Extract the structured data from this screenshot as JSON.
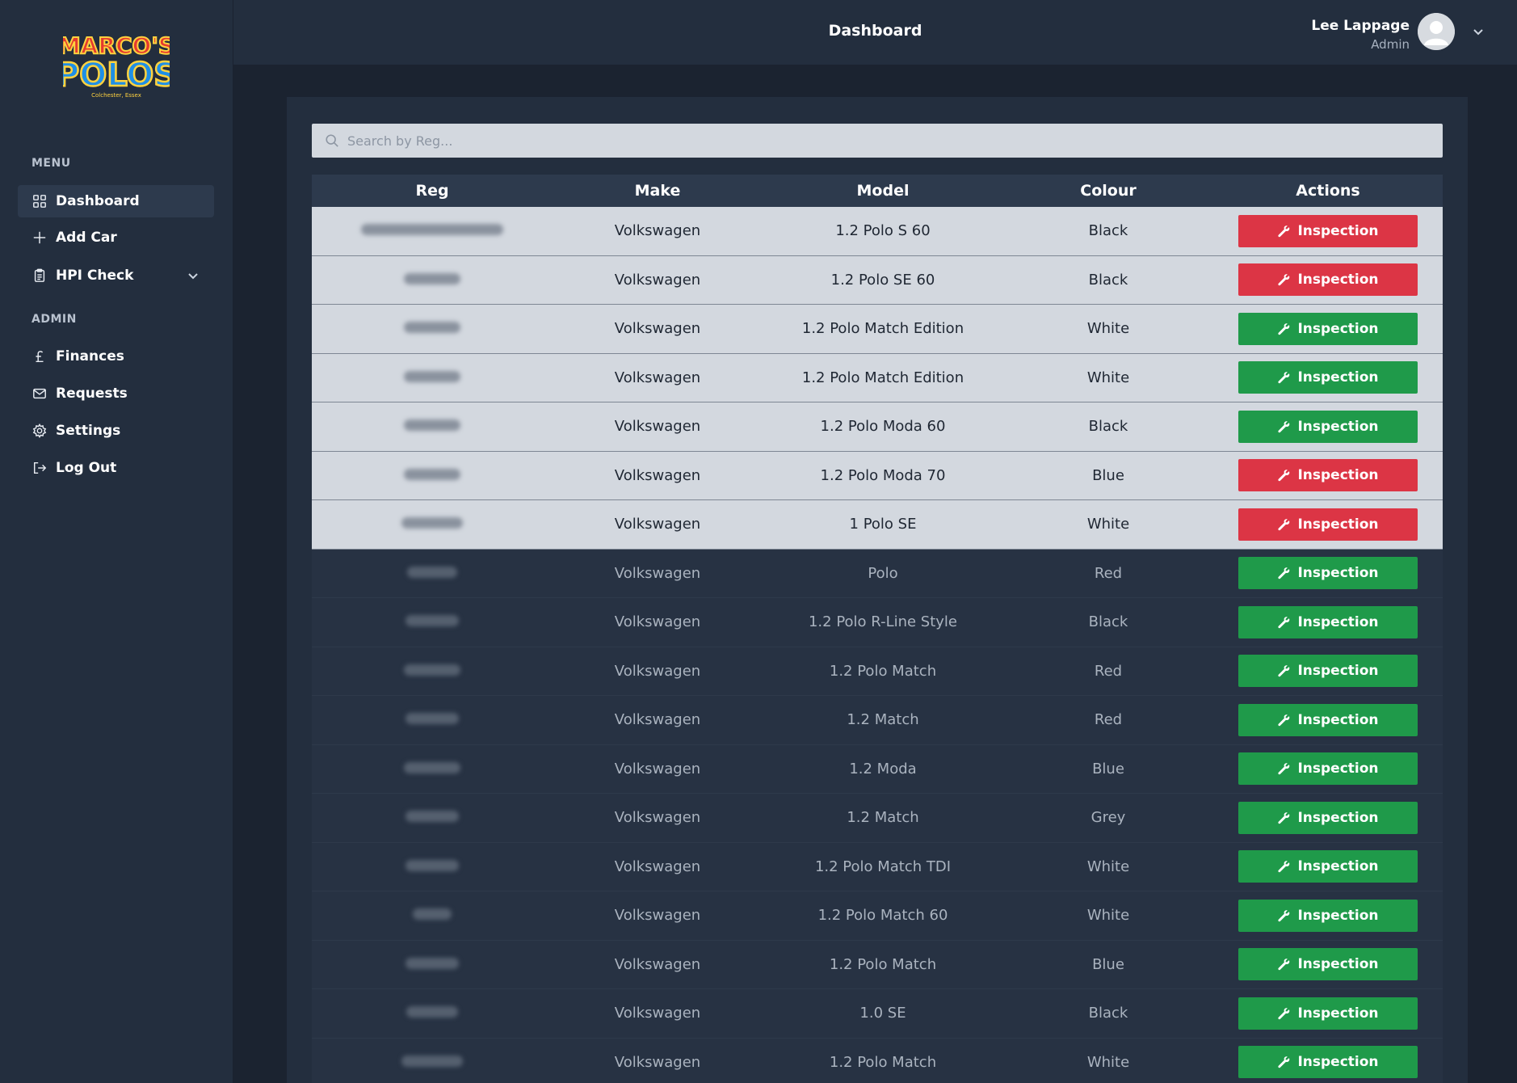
{
  "brand": {
    "logo_line1": "MARCO'S",
    "logo_line2": "POLOS",
    "logo_tagline": "Colchester, Essex"
  },
  "sidebar": {
    "menu_heading": "MENU",
    "admin_heading": "ADMIN",
    "items": [
      {
        "label": "Dashboard",
        "icon": "grid-icon"
      },
      {
        "label": "Add Car",
        "icon": "plus-icon"
      },
      {
        "label": "HPI Check",
        "icon": "clipboard-icon"
      },
      {
        "label": "Finances",
        "icon": "pound-icon"
      },
      {
        "label": "Requests",
        "icon": "mail-icon"
      },
      {
        "label": "Settings",
        "icon": "gear-icon"
      },
      {
        "label": "Log Out",
        "icon": "logout-icon"
      }
    ]
  },
  "header": {
    "title": "Dashboard",
    "user_name": "Lee Lappage",
    "user_role": "Admin"
  },
  "search": {
    "placeholder": "Search by Reg..."
  },
  "table": {
    "headers": [
      "Reg",
      "Make",
      "Model",
      "Colour",
      "Actions"
    ],
    "action_label": "Inspection",
    "colors": {
      "red": "#dc3545",
      "green": "#1f9a4a"
    },
    "rows": [
      {
        "make": "Volkswagen",
        "model": "1.2 Polo S 60",
        "colour": "Black",
        "status": "red",
        "theme": "light"
      },
      {
        "make": "Volkswagen",
        "model": "1.2 Polo SE 60",
        "colour": "Black",
        "status": "red",
        "theme": "light"
      },
      {
        "make": "Volkswagen",
        "model": "1.2 Polo Match Edition",
        "colour": "White",
        "status": "green",
        "theme": "light"
      },
      {
        "make": "Volkswagen",
        "model": "1.2 Polo Match Edition",
        "colour": "White",
        "status": "green",
        "theme": "light"
      },
      {
        "make": "Volkswagen",
        "model": "1.2 Polo Moda 60",
        "colour": "Black",
        "status": "green",
        "theme": "light"
      },
      {
        "make": "Volkswagen",
        "model": "1.2 Polo Moda 70",
        "colour": "Blue",
        "status": "red",
        "theme": "light"
      },
      {
        "make": "Volkswagen",
        "model": "1 Polo SE",
        "colour": "White",
        "status": "red",
        "theme": "light"
      },
      {
        "make": "Volkswagen",
        "model": "Polo",
        "colour": "Red",
        "status": "green",
        "theme": "dark"
      },
      {
        "make": "Volkswagen",
        "model": "1.2 Polo R-Line Style",
        "colour": "Black",
        "status": "green",
        "theme": "dark"
      },
      {
        "make": "Volkswagen",
        "model": "1.2 Polo Match",
        "colour": "Red",
        "status": "green",
        "theme": "dark"
      },
      {
        "make": "Volkswagen",
        "model": "1.2 Match",
        "colour": "Red",
        "status": "green",
        "theme": "dark"
      },
      {
        "make": "Volkswagen",
        "model": "1.2 Moda",
        "colour": "Blue",
        "status": "green",
        "theme": "dark"
      },
      {
        "make": "Volkswagen",
        "model": "1.2 Match",
        "colour": "Grey",
        "status": "green",
        "theme": "dark"
      },
      {
        "make": "Volkswagen",
        "model": "1.2 Polo Match TDI",
        "colour": "White",
        "status": "green",
        "theme": "dark"
      },
      {
        "make": "Volkswagen",
        "model": "1.2 Polo Match 60",
        "colour": "White",
        "status": "green",
        "theme": "dark"
      },
      {
        "make": "Volkswagen",
        "model": "1.2 Polo Match",
        "colour": "Blue",
        "status": "green",
        "theme": "dark"
      },
      {
        "make": "Volkswagen",
        "model": "1.0 SE",
        "colour": "Black",
        "status": "green",
        "theme": "dark"
      },
      {
        "make": "Volkswagen",
        "model": "1.2 Polo Match",
        "colour": "White",
        "status": "green",
        "theme": "dark"
      }
    ]
  }
}
